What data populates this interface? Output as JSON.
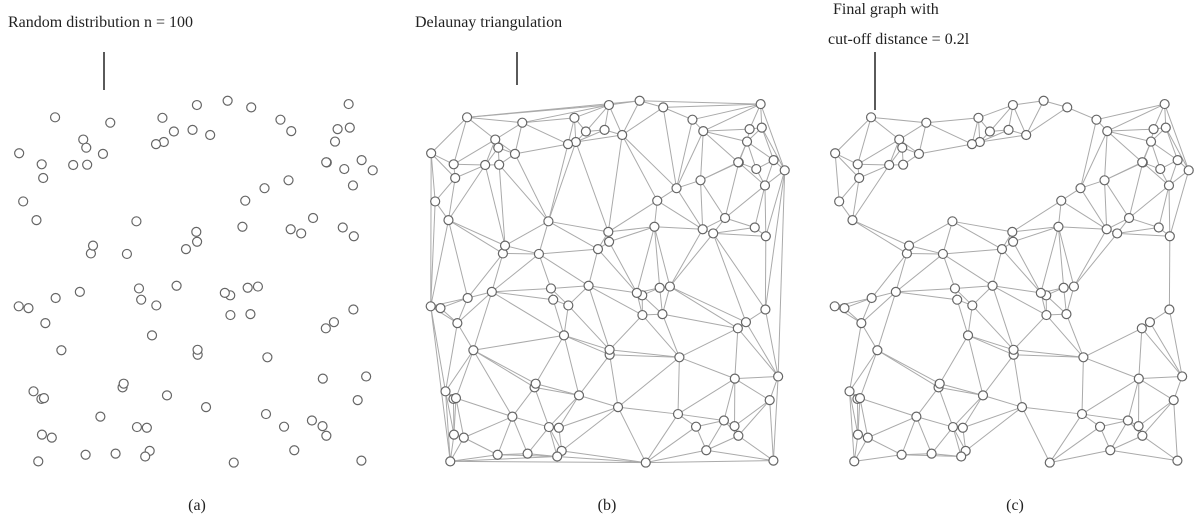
{
  "panels": [
    {
      "title": [
        "Random distribution n = 100"
      ],
      "caption": "(a)"
    },
    {
      "title": [
        "Delaunay triangulation"
      ],
      "caption": "(b)"
    },
    {
      "title": [
        "Final graph with",
        "cut-off distance = 0.2l"
      ],
      "caption": "(c)"
    }
  ]
}
